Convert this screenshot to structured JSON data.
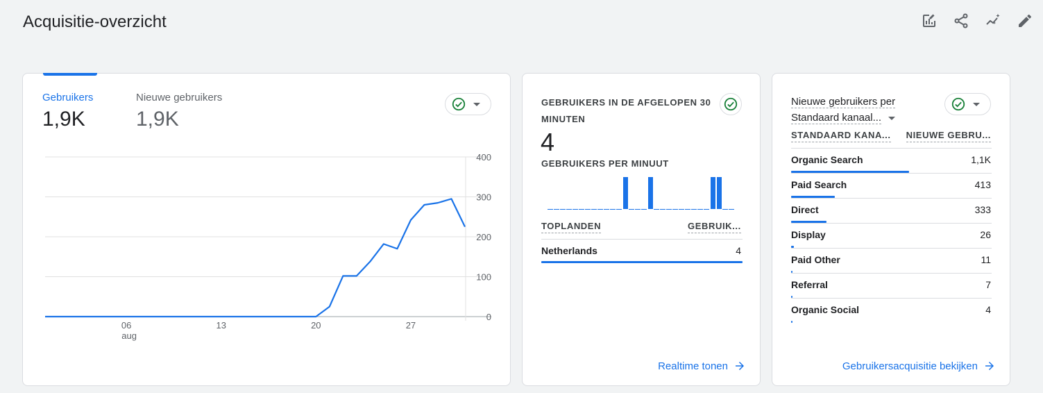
{
  "header": {
    "title": "Acquisitie-overzicht"
  },
  "toolbar": {
    "icons": [
      "customize-report-icon",
      "share-icon",
      "insights-icon",
      "edit-icon"
    ]
  },
  "users_card": {
    "metrics": [
      {
        "label": "Gebruikers",
        "value": "1,9K"
      },
      {
        "label": "Nieuwe gebruikers",
        "value": "1,9K"
      }
    ],
    "x_ticks": [
      {
        "day": "06",
        "month": "aug"
      },
      {
        "day": "13",
        "month": ""
      },
      {
        "day": "20",
        "month": ""
      },
      {
        "day": "27",
        "month": ""
      }
    ]
  },
  "chart_data": {
    "type": "line",
    "title": "",
    "xlabel": "",
    "ylabel": "",
    "ylim": [
      0,
      400
    ],
    "y_ticks": [
      "400",
      "300",
      "200",
      "100",
      "0"
    ],
    "x": [
      "31 jul",
      "1 aug",
      "2 aug",
      "3 aug",
      "4 aug",
      "5 aug",
      "6 aug",
      "7 aug",
      "8 aug",
      "9 aug",
      "10 aug",
      "11 aug",
      "12 aug",
      "13 aug",
      "14 aug",
      "15 aug",
      "16 aug",
      "17 aug",
      "18 aug",
      "19 aug",
      "20 aug",
      "21 aug",
      "22 aug",
      "23 aug",
      "24 aug",
      "25 aug",
      "26 aug",
      "27 aug",
      "28 aug",
      "29 aug",
      "30 aug",
      "31 aug"
    ],
    "series": [
      {
        "name": "Gebruikers",
        "color": "#1a73e8",
        "values": [
          0,
          0,
          0,
          0,
          0,
          0,
          0,
          0,
          0,
          0,
          0,
          0,
          0,
          0,
          0,
          0,
          0,
          0,
          0,
          0,
          0,
          25,
          102,
          102,
          138,
          182,
          170,
          242,
          280,
          285,
          295,
          225
        ]
      }
    ],
    "grid": true,
    "legend": "none"
  },
  "realtime_card": {
    "heading": "GEBRUIKERS IN DE AFGELOPEN 30 MINUTEN",
    "value": "4",
    "subheading": "GEBRUIKERS PER MINUUT",
    "per_minute": [
      0,
      0,
      0,
      0,
      0,
      0,
      0,
      0,
      0,
      0,
      0,
      0,
      1,
      0,
      0,
      0,
      1,
      0,
      0,
      0,
      0,
      0,
      0,
      0,
      0,
      0,
      1,
      1,
      0,
      0
    ],
    "table_headers": [
      "TOPLANDEN",
      "GEBRUIK..."
    ],
    "rows": [
      {
        "country": "Netherlands",
        "count": "4",
        "share": 1.0
      }
    ],
    "link": "Realtime tonen"
  },
  "channel_card": {
    "heading_line1": "Nieuwe gebruikers per",
    "heading_line2": "Standaard kanaal...",
    "table_headers": [
      "STANDAARD KANA...",
      "NIEUWE GEBRU..."
    ],
    "rows": [
      {
        "name": "Organic Search",
        "value": "1,1K",
        "share": 1.0
      },
      {
        "name": "Paid Search",
        "value": "413",
        "share": 0.37
      },
      {
        "name": "Direct",
        "value": "333",
        "share": 0.3
      },
      {
        "name": "Display",
        "value": "26",
        "share": 0.023
      },
      {
        "name": "Paid Other",
        "value": "11",
        "share": 0.01
      },
      {
        "name": "Referral",
        "value": "7",
        "share": 0.006
      },
      {
        "name": "Organic Social",
        "value": "4",
        "share": 0.004
      }
    ],
    "link": "Gebruikersacquisitie bekijken"
  },
  "colors": {
    "accent": "#1a73e8",
    "check": "#188038"
  }
}
